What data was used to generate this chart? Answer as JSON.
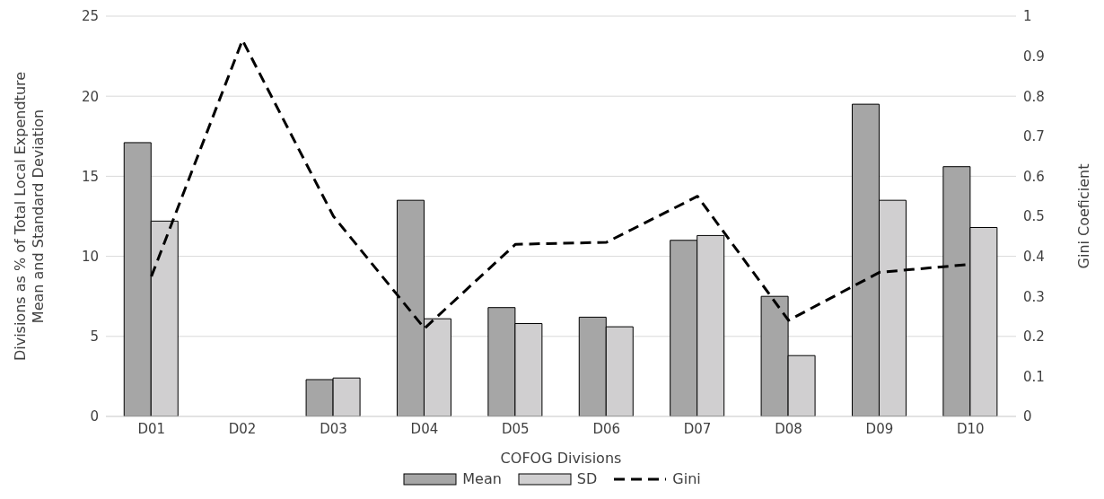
{
  "chart_data": {
    "type": "bar",
    "xlabel": "COFOG Divisions",
    "ylabel": "Divisions as % of Total Local Expendture\nMean and Standard Deviation",
    "y2label": "Gini Coeficient",
    "categories": [
      "D01",
      "D02",
      "D03",
      "D04",
      "D05",
      "D06",
      "D07",
      "D08",
      "D09",
      "D10"
    ],
    "series": [
      {
        "name": "Mean",
        "color": "#a6a6a6",
        "values": [
          17.1,
          null,
          2.3,
          13.5,
          6.8,
          6.2,
          11.0,
          7.5,
          19.5,
          15.6
        ]
      },
      {
        "name": "SD",
        "color": "#d0cfd0",
        "values": [
          12.2,
          null,
          2.4,
          6.1,
          5.8,
          5.6,
          11.3,
          3.8,
          13.5,
          11.8
        ]
      },
      {
        "name": "Gini",
        "type": "line",
        "axis": "y2",
        "color": "#000000",
        "line_style": "dashed",
        "values": [
          0.35,
          0.94,
          0.5,
          0.22,
          0.43,
          0.435,
          0.55,
          0.24,
          0.36,
          0.38
        ]
      }
    ],
    "ylim": [
      0,
      25
    ],
    "yticks": [
      0,
      5,
      10,
      15,
      20,
      25
    ],
    "y2lim": [
      0,
      1
    ],
    "y2ticks": [
      0,
      0.1,
      0.2,
      0.3,
      0.4,
      0.5,
      0.6,
      0.7,
      0.8,
      0.9,
      1
    ],
    "grid": "y",
    "legend": "bottom",
    "marker": "none"
  }
}
